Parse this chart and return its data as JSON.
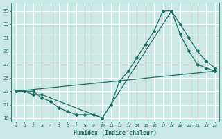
{
  "xlabel": "Humidex (Indice chaleur)",
  "bg_color": "#cce8e4",
  "grid_color": "#ffffff",
  "line_color": "#1a6e60",
  "xlim": [
    -0.5,
    23.5
  ],
  "ylim": [
    18.5,
    36.2
  ],
  "yticks": [
    19,
    21,
    23,
    25,
    27,
    29,
    31,
    33,
    35
  ],
  "xticks": [
    0,
    1,
    2,
    3,
    4,
    5,
    6,
    7,
    8,
    9,
    10,
    11,
    12,
    13,
    14,
    15,
    16,
    17,
    18,
    19,
    20,
    21,
    22,
    23
  ],
  "line1_x": [
    0,
    1,
    2,
    3,
    4,
    5,
    6,
    7,
    8,
    9,
    10,
    11,
    12,
    13,
    14,
    15,
    16,
    17,
    18,
    19,
    20,
    21,
    22,
    23
  ],
  "line1_y": [
    23,
    23,
    23,
    22,
    21.5,
    20.5,
    20,
    19.5,
    19.5,
    19.5,
    19,
    21,
    24.5,
    26,
    28,
    30,
    32,
    35,
    35,
    31.5,
    29,
    27,
    26.5,
    26
  ],
  "line2_x": [
    0,
    1,
    2,
    3,
    10,
    18,
    19,
    20,
    21,
    22,
    23
  ],
  "line2_y": [
    23,
    23,
    22.5,
    22.5,
    19,
    35,
    33,
    31,
    29,
    27.5,
    26.5
  ],
  "line3_x": [
    0,
    23
  ],
  "line3_y": [
    23,
    26
  ],
  "figsize": [
    3.2,
    2.0
  ],
  "dpi": 100
}
